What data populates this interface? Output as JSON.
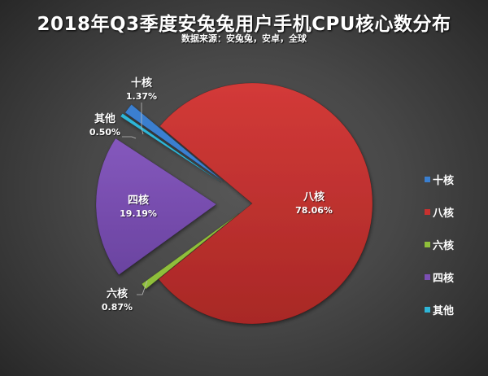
{
  "title": "2018年Q3季度安兔兔用户手机CPU核心数分布",
  "subtitle": "数据来源：安兔兔，安卓，全球",
  "chart_data": {
    "type": "pie",
    "title": "2018年Q3季度安兔兔用户手机CPU核心数分布",
    "subtitle": "数据来源：安兔兔，安卓，全球",
    "categories": [
      "十核",
      "八核",
      "六核",
      "四核",
      "其他"
    ],
    "values": [
      1.37,
      78.06,
      0.87,
      19.19,
      0.5
    ],
    "unit": "%",
    "colors": [
      "#3a7fd0",
      "#c8312f",
      "#8fbf3a",
      "#7b4fb3",
      "#2fb6d8"
    ],
    "exploded": true,
    "legend_position": "right"
  },
  "labels": {
    "ten": {
      "name": "十核",
      "pct": "1.37%"
    },
    "eight": {
      "name": "八核",
      "pct": "78.06%"
    },
    "six": {
      "name": "六核",
      "pct": "0.87%"
    },
    "four": {
      "name": "四核",
      "pct": "19.19%"
    },
    "other": {
      "name": "其他",
      "pct": "0.50%"
    }
  },
  "legend": [
    {
      "label": "十核",
      "color": "#3a7fd0"
    },
    {
      "label": "八核",
      "color": "#c8312f"
    },
    {
      "label": "六核",
      "color": "#8fbf3a"
    },
    {
      "label": "四核",
      "color": "#7b4fb3"
    },
    {
      "label": "其他",
      "color": "#2fb6d8"
    }
  ]
}
